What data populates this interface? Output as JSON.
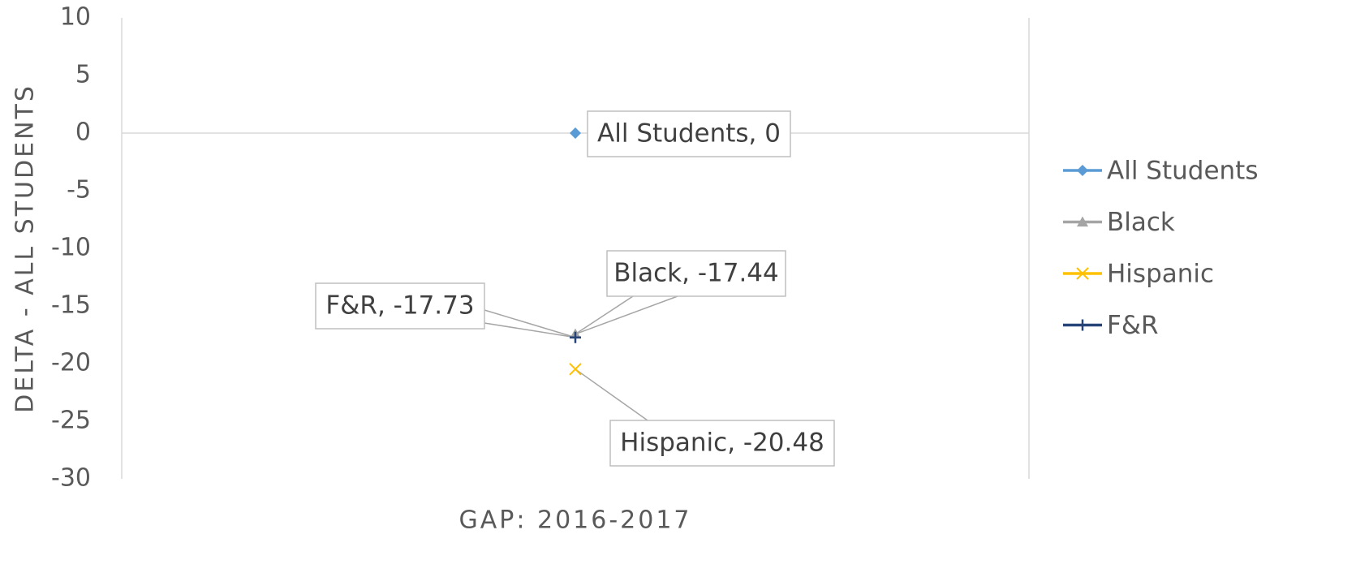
{
  "chart_data": {
    "type": "line",
    "x_label": "GAP: 2016-2017",
    "y_label": "DELTA - ALL STUDENTS",
    "categories": [
      null
    ],
    "ylim": [
      -30,
      10
    ],
    "yticks": [
      -30,
      -25,
      -20,
      -15,
      -10,
      -5,
      0,
      5,
      10
    ],
    "grid": false,
    "legend": "right",
    "series": [
      {
        "name": "All Students",
        "color": "#5b9bd5",
        "marker": "diamond",
        "values": [
          0
        ],
        "value_labels": [
          "All Students, 0"
        ]
      },
      {
        "name": "Black",
        "color": "#a5a5a5",
        "marker": "triangle",
        "values": [
          -17.44
        ],
        "value_labels": [
          "Black, -17.44"
        ]
      },
      {
        "name": "Hispanic",
        "color": "#ffc000",
        "marker": "x",
        "values": [
          -20.48
        ],
        "value_labels": [
          "Hispanic, -20.48"
        ]
      },
      {
        "name": "F&R",
        "color": "#264478",
        "marker": "plus",
        "values": [
          -17.73
        ],
        "value_labels": [
          "F&R, -17.73"
        ]
      }
    ]
  }
}
